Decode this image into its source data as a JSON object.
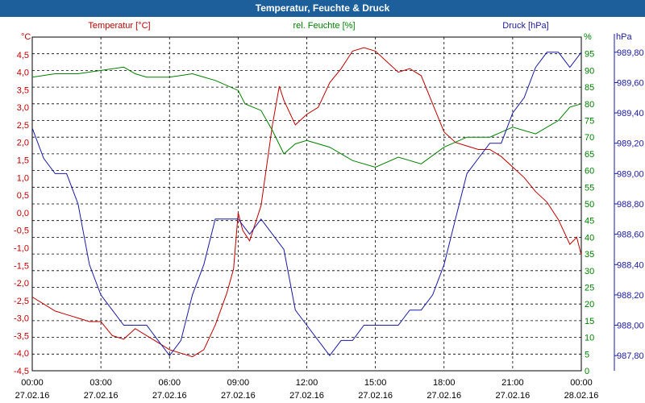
{
  "window": {
    "title": "Temperatur, Feuchte & Druck"
  },
  "colors": {
    "temperature": "#c00000",
    "humidity": "#008000",
    "pressure": "#1a1aa6",
    "titlebar": "#1d5f9a"
  },
  "chart_data": {
    "type": "line",
    "title": "Temperatur, Feuchte & Druck",
    "grid": true,
    "x_ticks": [
      {
        "time": "00:00",
        "date": "27.02.16"
      },
      {
        "time": "03:00",
        "date": "27.02.16"
      },
      {
        "time": "06:00",
        "date": "27.02.16"
      },
      {
        "time": "09:00",
        "date": "27.02.16"
      },
      {
        "time": "12:00",
        "date": "27.02.16"
      },
      {
        "time": "15:00",
        "date": "27.02.16"
      },
      {
        "time": "18:00",
        "date": "27.02.16"
      },
      {
        "time": "21:00",
        "date": "27.02.16"
      },
      {
        "time": "00:00",
        "date": "28.02.16"
      }
    ],
    "x_range_hours": [
      0,
      24
    ],
    "axes": {
      "temperature": {
        "label": "Temperatur [°C]",
        "unit": "°C",
        "range": [
          -4.5,
          5.0
        ],
        "ticks": [
          "-4,5",
          "-4,0",
          "-3,5",
          "-3,0",
          "-2,5",
          "-2,0",
          "-1,5",
          "-1,0",
          "-0,5",
          "0,0",
          "0,5",
          "1,0",
          "1,5",
          "2,0",
          "2,5",
          "3,0",
          "3,5",
          "4,0",
          "4,5"
        ],
        "tick_values": [
          -4.5,
          -4.0,
          -3.5,
          -3.0,
          -2.5,
          -2.0,
          -1.5,
          -1.0,
          -0.5,
          0.0,
          0.5,
          1.0,
          1.5,
          2.0,
          2.5,
          3.0,
          3.5,
          4.0,
          4.5
        ]
      },
      "humidity": {
        "label": "rel. Feuchte [%]",
        "unit": "%",
        "range": [
          0,
          100
        ],
        "ticks": [
          "0",
          "5",
          "10",
          "15",
          "20",
          "25",
          "30",
          "35",
          "40",
          "45",
          "50",
          "55",
          "60",
          "65",
          "70",
          "75",
          "80",
          "85",
          "90",
          "95"
        ],
        "tick_values": [
          0,
          5,
          10,
          15,
          20,
          25,
          30,
          35,
          40,
          45,
          50,
          55,
          60,
          65,
          70,
          75,
          80,
          85,
          90,
          95
        ]
      },
      "pressure": {
        "label": "Druck [hPa]",
        "unit": "hPa",
        "range": [
          987.7,
          989.9
        ],
        "ticks": [
          "987,80",
          "988,00",
          "988,20",
          "988,40",
          "988,60",
          "988,80",
          "989,00",
          "989,20",
          "989,40",
          "989,60",
          "989,80"
        ],
        "tick_values": [
          987.8,
          988.0,
          988.2,
          988.4,
          988.6,
          988.8,
          989.0,
          989.2,
          989.4,
          989.6,
          989.8
        ]
      }
    },
    "series": [
      {
        "name": "Temperatur [°C]",
        "axis": "temperature",
        "x": [
          0,
          0.5,
          1,
          1.5,
          2,
          2.5,
          3,
          3.5,
          4,
          4.5,
          5,
          5.5,
          6,
          6.5,
          7,
          7.5,
          8,
          8.5,
          8.8,
          9,
          9.2,
          9.5,
          10,
          10.5,
          10.8,
          11,
          11.5,
          12,
          12.5,
          13,
          13.5,
          14,
          14.5,
          15,
          15.5,
          16,
          16.5,
          17,
          17.5,
          18,
          18.5,
          19,
          19.5,
          20,
          20.5,
          21,
          21.5,
          22,
          22.5,
          23,
          23.5,
          23.8,
          24
        ],
        "y": [
          -2.4,
          -2.6,
          -2.8,
          -2.9,
          -3.0,
          -3.1,
          -3.1,
          -3.5,
          -3.6,
          -3.3,
          -3.5,
          -3.7,
          -3.9,
          -4.0,
          -4.1,
          -3.9,
          -3.2,
          -2.3,
          -1.6,
          0.0,
          -0.5,
          -0.8,
          0.2,
          2.5,
          3.6,
          3.2,
          2.5,
          2.8,
          3.0,
          3.7,
          4.1,
          4.6,
          4.7,
          4.6,
          4.3,
          4.0,
          4.1,
          3.9,
          3.1,
          2.3,
          2.0,
          1.9,
          1.8,
          1.8,
          1.6,
          1.3,
          1.0,
          0.6,
          0.3,
          -0.2,
          -0.9,
          -0.7,
          -1.2
        ]
      },
      {
        "name": "rel. Feuchte [%]",
        "axis": "humidity",
        "x": [
          0,
          1,
          2,
          3,
          4,
          4.5,
          5,
          6,
          7,
          8,
          9,
          9.3,
          10,
          10.5,
          11,
          11.5,
          12,
          13,
          14,
          15,
          16,
          17,
          18,
          19,
          20,
          21,
          22,
          23,
          23.5,
          24
        ],
        "y": [
          88,
          89,
          89,
          90,
          91,
          89,
          88,
          88,
          89,
          87,
          84,
          80,
          78,
          72,
          65,
          68,
          69,
          67,
          63,
          61,
          64,
          62,
          67,
          70,
          70,
          73,
          71,
          75,
          79,
          80
        ]
      },
      {
        "name": "Druck [hPa]",
        "axis": "pressure",
        "x": [
          0,
          0.5,
          1,
          1.5,
          2,
          2.5,
          3,
          3.5,
          4,
          4.5,
          5,
          5.5,
          6,
          6.5,
          7,
          7.5,
          8,
          8.5,
          9,
          9.5,
          10,
          10.5,
          11,
          11.5,
          12,
          12.5,
          13,
          13.5,
          14,
          14.5,
          15,
          15.5,
          16,
          16.5,
          17,
          17.5,
          18,
          18.5,
          19,
          19.5,
          20,
          20.5,
          21,
          21.5,
          22,
          22.5,
          23,
          23.5,
          24
        ],
        "y": [
          989.3,
          989.1,
          989.0,
          989.0,
          988.8,
          988.4,
          988.2,
          988.1,
          988.0,
          988.0,
          988.0,
          987.9,
          987.8,
          987.9,
          988.2,
          988.4,
          988.7,
          988.7,
          988.7,
          988.6,
          988.7,
          988.6,
          988.5,
          988.1,
          988.0,
          987.9,
          987.8,
          987.9,
          987.9,
          988.0,
          988.0,
          988.0,
          988.0,
          988.1,
          988.1,
          988.2,
          988.4,
          988.7,
          989.0,
          989.1,
          989.2,
          989.2,
          989.4,
          989.5,
          989.7,
          989.8,
          989.8,
          989.7,
          989.8
        ]
      }
    ]
  }
}
